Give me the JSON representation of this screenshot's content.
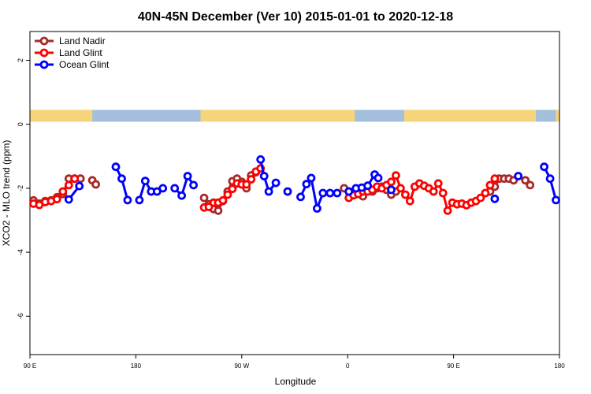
{
  "chart_data": {
    "type": "line",
    "title": "40N-45N December (Ver 10)   2015-01-01 to 2020-12-18",
    "xlabel": "Longitude",
    "ylabel": "XCO2 - MLO trend (ppm)",
    "x_axis": {
      "ticks": [
        {
          "value": 90,
          "label": "90 E"
        },
        {
          "value": 180,
          "label": "180"
        },
        {
          "value": 270,
          "label": "90 W"
        },
        {
          "value": 360,
          "label": "0"
        },
        {
          "value": 450,
          "label": "90 E"
        },
        {
          "value": 540,
          "label": "180"
        }
      ],
      "range": [
        90,
        540
      ]
    },
    "y_axis": {
      "ticks": [
        -6,
        -4,
        -2,
        0,
        2
      ],
      "range": [
        -7.2,
        2.9
      ]
    },
    "grid": false,
    "legend_position": "top-left",
    "land_ocean_strip": {
      "ocean_color": "#a4bede",
      "land_color": "#f6d57a",
      "land_segments_lon": [
        [
          90,
          143
        ],
        [
          235,
          366
        ],
        [
          408,
          520
        ],
        [
          537,
          540
        ]
      ]
    },
    "series": [
      {
        "name": "Land Nadir",
        "color": "#a52a2a",
        "segments": [
          [
            [
              93,
              -2.38
            ],
            [
              98,
              -2.48
            ],
            [
              103,
              -2.4
            ],
            [
              108,
              -2.38
            ],
            [
              113,
              -2.28
            ],
            [
              118,
              -2.18
            ],
            [
              123,
              -1.7
            ],
            [
              128,
              -1.7
            ],
            [
              133,
              -1.7
            ]
          ],
          [
            [
              143,
              -1.75
            ],
            [
              146,
              -1.88
            ]
          ],
          [
            [
              238,
              -2.3
            ],
            [
              242,
              -2.5
            ],
            [
              246,
              -2.65
            ],
            [
              250,
              -2.7
            ],
            [
              254,
              -2.4
            ],
            [
              258,
              -2.1
            ],
            [
              262,
              -1.78
            ],
            [
              266,
              -1.7
            ],
            [
              270,
              -1.8
            ],
            [
              274,
              -2.0
            ],
            [
              278,
              -1.6
            ],
            [
              282,
              -1.5
            ]
          ],
          [
            [
              357,
              -2.0
            ],
            [
              361,
              -2.1
            ],
            [
              365,
              -2.15
            ],
            [
              369,
              -2.1
            ],
            [
              373,
              -2.25
            ],
            [
              377,
              -2.0
            ],
            [
              381,
              -2.1
            ],
            [
              385,
              -2.0
            ],
            [
              389,
              -1.95
            ],
            [
              393,
              -2.05
            ],
            [
              397,
              -2.2
            ],
            [
              401,
              -2.1
            ]
          ],
          [
            [
              481,
              -2.1
            ],
            [
              485,
              -1.95
            ],
            [
              489,
              -1.7
            ],
            [
              493,
              -1.7
            ],
            [
              497,
              -1.7
            ],
            [
              501,
              -1.75
            ]
          ],
          [
            [
              511,
              -1.75
            ],
            [
              515,
              -1.9
            ]
          ]
        ]
      },
      {
        "name": "Land Glint",
        "color": "#ff0000",
        "segments": [
          [
            [
              93,
              -2.48
            ],
            [
              98,
              -2.52
            ],
            [
              103,
              -2.43
            ],
            [
              108,
              -2.4
            ],
            [
              113,
              -2.34
            ],
            [
              118,
              -2.1
            ],
            [
              123,
              -1.9
            ],
            [
              128,
              -1.7
            ]
          ],
          [
            [
              238,
              -2.6
            ],
            [
              242,
              -2.58
            ],
            [
              246,
              -2.45
            ],
            [
              250,
              -2.45
            ],
            [
              254,
              -2.38
            ],
            [
              258,
              -2.2
            ],
            [
              262,
              -2.02
            ],
            [
              266,
              -1.85
            ],
            [
              270,
              -1.88
            ],
            [
              274,
              -1.88
            ],
            [
              278,
              -1.72
            ],
            [
              282,
              -1.48
            ],
            [
              286,
              -1.38
            ]
          ],
          [
            [
              361,
              -2.3
            ],
            [
              365,
              -2.22
            ],
            [
              369,
              -2.18
            ],
            [
              373,
              -2.1
            ],
            [
              377,
              -2.1
            ],
            [
              381,
              -2.05
            ],
            [
              385,
              -1.95
            ],
            [
              389,
              -2.0
            ],
            [
              393,
              -1.9
            ],
            [
              397,
              -1.8
            ],
            [
              401,
              -1.6
            ],
            [
              405,
              -2.0
            ],
            [
              409,
              -2.2
            ],
            [
              413,
              -2.4
            ],
            [
              417,
              -1.95
            ],
            [
              421,
              -1.85
            ],
            [
              425,
              -1.92
            ],
            [
              429,
              -2.0
            ],
            [
              433,
              -2.1
            ],
            [
              437,
              -1.85
            ],
            [
              441,
              -2.15
            ],
            [
              445,
              -2.7
            ],
            [
              449,
              -2.45
            ],
            [
              453,
              -2.5
            ],
            [
              457,
              -2.48
            ],
            [
              461,
              -2.53
            ],
            [
              465,
              -2.45
            ],
            [
              469,
              -2.4
            ],
            [
              473,
              -2.3
            ],
            [
              477,
              -2.15
            ],
            [
              481,
              -1.9
            ],
            [
              485,
              -1.7
            ]
          ]
        ]
      },
      {
        "name": "Ocean Glint",
        "color": "#0000ff",
        "segments": [
          [
            [
              123,
              -2.35
            ],
            [
              132,
              -1.93
            ]
          ],
          [
            [
              163,
              -1.33
            ],
            [
              168,
              -1.7
            ],
            [
              173,
              -2.37
            ]
          ],
          [
            [
              183,
              -2.37
            ],
            [
              188,
              -1.77
            ],
            [
              193,
              -2.1
            ],
            [
              198,
              -2.1
            ],
            [
              203,
              -2.0
            ]
          ],
          [
            [
              213,
              -2.0
            ],
            [
              219,
              -2.23
            ],
            [
              224,
              -1.62
            ],
            [
              229,
              -1.9
            ]
          ],
          [
            [
              286,
              -1.1
            ],
            [
              289,
              -1.62
            ],
            [
              293,
              -2.1
            ],
            [
              299,
              -1.83
            ]
          ],
          [
            [
              309,
              -2.1
            ]
          ],
          [
            [
              320,
              -2.27
            ],
            [
              325,
              -1.87
            ],
            [
              329,
              -1.68
            ],
            [
              334,
              -2.63
            ],
            [
              339,
              -2.15
            ],
            [
              345,
              -2.15
            ],
            [
              351,
              -2.15
            ]
          ],
          [
            [
              361,
              -2.1
            ],
            [
              367,
              -2.0
            ],
            [
              372,
              -1.98
            ],
            [
              377,
              -1.92
            ],
            [
              383,
              -1.57
            ],
            [
              386,
              -1.68
            ]
          ],
          [
            [
              397,
              -2.05
            ]
          ],
          [
            [
              485,
              -2.33
            ]
          ],
          [
            [
              505,
              -1.62
            ]
          ],
          [
            [
              527,
              -1.33
            ],
            [
              532,
              -1.7
            ],
            [
              537,
              -2.37
            ]
          ]
        ]
      }
    ]
  }
}
